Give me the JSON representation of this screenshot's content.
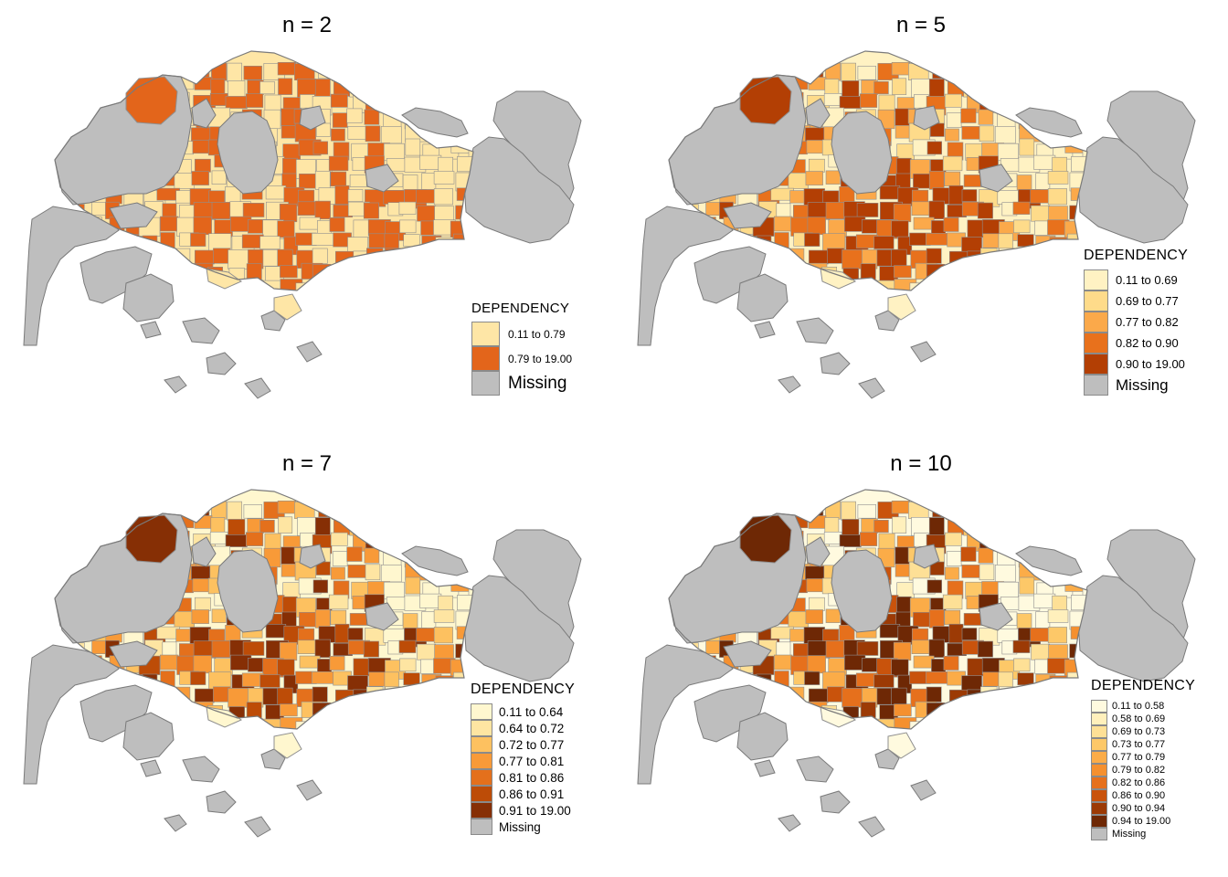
{
  "panels": [
    {
      "title": "n = 2",
      "legend": {
        "title": "DEPENDENCY",
        "classes": [
          {
            "label": "0.11 to 0.79",
            "color": "#fee6a6"
          },
          {
            "label": "0.79 to 19.00",
            "color": "#e3651b"
          }
        ],
        "missing": {
          "label": "Missing",
          "color": "#bebebe"
        }
      }
    },
    {
      "title": "n = 5",
      "legend": {
        "title": "DEPENDENCY",
        "classes": [
          {
            "label": "0.11 to 0.69",
            "color": "#fff2c3"
          },
          {
            "label": "0.69 to 0.77",
            "color": "#fedb8a"
          },
          {
            "label": "0.77 to 0.82",
            "color": "#fba94a"
          },
          {
            "label": "0.82 to 0.90",
            "color": "#e8711c"
          },
          {
            "label": "0.90 to 19.00",
            "color": "#b33f04"
          }
        ],
        "missing": {
          "label": "Missing",
          "color": "#bebebe"
        }
      }
    },
    {
      "title": "n = 7",
      "legend": {
        "title": "DEPENDENCY",
        "classes": [
          {
            "label": "0.11 to 0.64",
            "color": "#fff7cf"
          },
          {
            "label": "0.64 to 0.72",
            "color": "#fee5a2"
          },
          {
            "label": "0.72 to 0.77",
            "color": "#fdc160"
          },
          {
            "label": "0.77 to 0.81",
            "color": "#f89a38"
          },
          {
            "label": "0.81 to 0.86",
            "color": "#e4701c"
          },
          {
            "label": "0.86 to 0.91",
            "color": "#bd4c07"
          },
          {
            "label": "0.91 to 19.00",
            "color": "#862f05"
          }
        ],
        "missing": {
          "label": "Missing",
          "color": "#bebebe"
        }
      }
    },
    {
      "title": "n = 10",
      "legend": {
        "title": "DEPENDENCY",
        "classes": [
          {
            "label": "0.11 to 0.58",
            "color": "#fffadf"
          },
          {
            "label": "0.58 to 0.69",
            "color": "#fff0bc"
          },
          {
            "label": "0.69 to 0.73",
            "color": "#fee096"
          },
          {
            "label": "0.73 to 0.77",
            "color": "#fdc868"
          },
          {
            "label": "0.77 to 0.79",
            "color": "#fbac48"
          },
          {
            "label": "0.79 to 0.82",
            "color": "#f5902f"
          },
          {
            "label": "0.82 to 0.86",
            "color": "#e6701c"
          },
          {
            "label": "0.86 to 0.90",
            "color": "#c9530c"
          },
          {
            "label": "0.90 to 0.94",
            "color": "#9c3a05"
          },
          {
            "label": "0.94 to 19.00",
            "color": "#6e2805"
          }
        ],
        "missing": {
          "label": "Missing",
          "color": "#bebebe"
        }
      }
    }
  ]
}
